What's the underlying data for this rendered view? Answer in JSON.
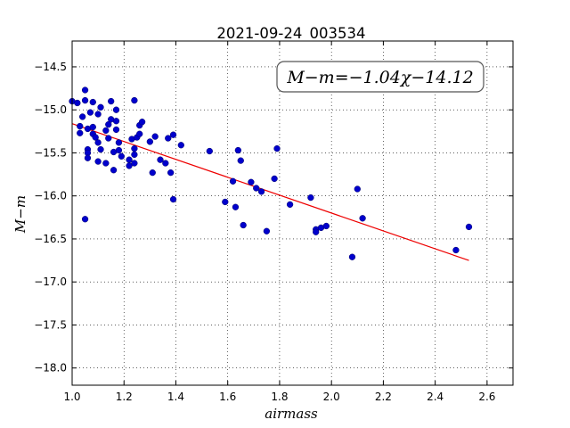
{
  "chart_data": {
    "type": "scatter",
    "title": "2021-09-24_003534",
    "xlabel": "airmass",
    "ylabel": "M−m",
    "xlim": [
      1.0,
      2.7
    ],
    "ylim": [
      -18.2,
      -14.2
    ],
    "y_inverted": true,
    "grid": true,
    "x_ticks": [
      "1.0",
      "1.2",
      "1.4",
      "1.6",
      "1.8",
      "2.0",
      "2.2",
      "2.4",
      "2.6"
    ],
    "y_ticks": [
      "−14.5",
      "−15.0",
      "−15.5",
      "−16.0",
      "−16.5",
      "−17.0",
      "−17.5",
      "−18.0"
    ],
    "annotation": "M−m=−1.04χ−14.12",
    "marker_color": "#0000cc",
    "fit_color": "#ee0000",
    "points": [
      {
        "x": 1.0,
        "y": -14.9
      },
      {
        "x": 1.02,
        "y": -14.92
      },
      {
        "x": 1.04,
        "y": -15.08
      },
      {
        "x": 1.05,
        "y": -14.77
      },
      {
        "x": 1.05,
        "y": -14.89
      },
      {
        "x": 1.03,
        "y": -15.19
      },
      {
        "x": 1.03,
        "y": -15.27
      },
      {
        "x": 1.06,
        "y": -15.22
      },
      {
        "x": 1.07,
        "y": -15.03
      },
      {
        "x": 1.08,
        "y": -14.91
      },
      {
        "x": 1.08,
        "y": -15.2
      },
      {
        "x": 1.08,
        "y": -15.28
      },
      {
        "x": 1.06,
        "y": -15.46
      },
      {
        "x": 1.06,
        "y": -15.5
      },
      {
        "x": 1.06,
        "y": -15.56
      },
      {
        "x": 1.05,
        "y": -16.27
      },
      {
        "x": 1.09,
        "y": -15.32
      },
      {
        "x": 1.1,
        "y": -15.38
      },
      {
        "x": 1.1,
        "y": -15.05
      },
      {
        "x": 1.11,
        "y": -14.97
      },
      {
        "x": 1.11,
        "y": -15.46
      },
      {
        "x": 1.1,
        "y": -15.6
      },
      {
        "x": 1.13,
        "y": -15.62
      },
      {
        "x": 1.13,
        "y": -15.24
      },
      {
        "x": 1.14,
        "y": -15.17
      },
      {
        "x": 1.14,
        "y": -15.33
      },
      {
        "x": 1.15,
        "y": -14.9
      },
      {
        "x": 1.15,
        "y": -15.11
      },
      {
        "x": 1.16,
        "y": -15.49
      },
      {
        "x": 1.16,
        "y": -15.7
      },
      {
        "x": 1.17,
        "y": -15.0
      },
      {
        "x": 1.17,
        "y": -15.13
      },
      {
        "x": 1.17,
        "y": -15.23
      },
      {
        "x": 1.18,
        "y": -15.38
      },
      {
        "x": 1.18,
        "y": -15.47
      },
      {
        "x": 1.19,
        "y": -15.54
      },
      {
        "x": 1.22,
        "y": -15.58
      },
      {
        "x": 1.22,
        "y": -15.65
      },
      {
        "x": 1.23,
        "y": -15.34
      },
      {
        "x": 1.24,
        "y": -15.45
      },
      {
        "x": 1.24,
        "y": -15.52
      },
      {
        "x": 1.24,
        "y": -15.62
      },
      {
        "x": 1.24,
        "y": -14.89
      },
      {
        "x": 1.25,
        "y": -15.32
      },
      {
        "x": 1.26,
        "y": -15.28
      },
      {
        "x": 1.26,
        "y": -15.18
      },
      {
        "x": 1.27,
        "y": -15.14
      },
      {
        "x": 1.3,
        "y": -15.37
      },
      {
        "x": 1.31,
        "y": -15.73
      },
      {
        "x": 1.32,
        "y": -15.31
      },
      {
        "x": 1.34,
        "y": -15.58
      },
      {
        "x": 1.36,
        "y": -15.62
      },
      {
        "x": 1.37,
        "y": -15.33
      },
      {
        "x": 1.38,
        "y": -15.73
      },
      {
        "x": 1.39,
        "y": -15.29
      },
      {
        "x": 1.39,
        "y": -16.04
      },
      {
        "x": 1.42,
        "y": -15.41
      },
      {
        "x": 1.53,
        "y": -15.48
      },
      {
        "x": 1.59,
        "y": -16.07
      },
      {
        "x": 1.62,
        "y": -15.83
      },
      {
        "x": 1.63,
        "y": -16.13
      },
      {
        "x": 1.64,
        "y": -15.47
      },
      {
        "x": 1.65,
        "y": -15.59
      },
      {
        "x": 1.66,
        "y": -16.34
      },
      {
        "x": 1.69,
        "y": -15.84
      },
      {
        "x": 1.71,
        "y": -15.91
      },
      {
        "x": 1.73,
        "y": -15.95
      },
      {
        "x": 1.75,
        "y": -16.41
      },
      {
        "x": 1.78,
        "y": -15.8
      },
      {
        "x": 1.79,
        "y": -15.45
      },
      {
        "x": 1.84,
        "y": -16.1
      },
      {
        "x": 1.92,
        "y": -16.02
      },
      {
        "x": 1.94,
        "y": -16.39
      },
      {
        "x": 1.94,
        "y": -16.42
      },
      {
        "x": 1.96,
        "y": -16.37
      },
      {
        "x": 1.98,
        "y": -16.35
      },
      {
        "x": 2.08,
        "y": -16.71
      },
      {
        "x": 2.1,
        "y": -15.92
      },
      {
        "x": 2.12,
        "y": -16.26
      },
      {
        "x": 2.48,
        "y": -16.63
      },
      {
        "x": 2.53,
        "y": -16.36
      }
    ],
    "fit_line": {
      "x": [
        1.0,
        2.53
      ],
      "y": [
        -15.16,
        -16.75
      ]
    }
  }
}
